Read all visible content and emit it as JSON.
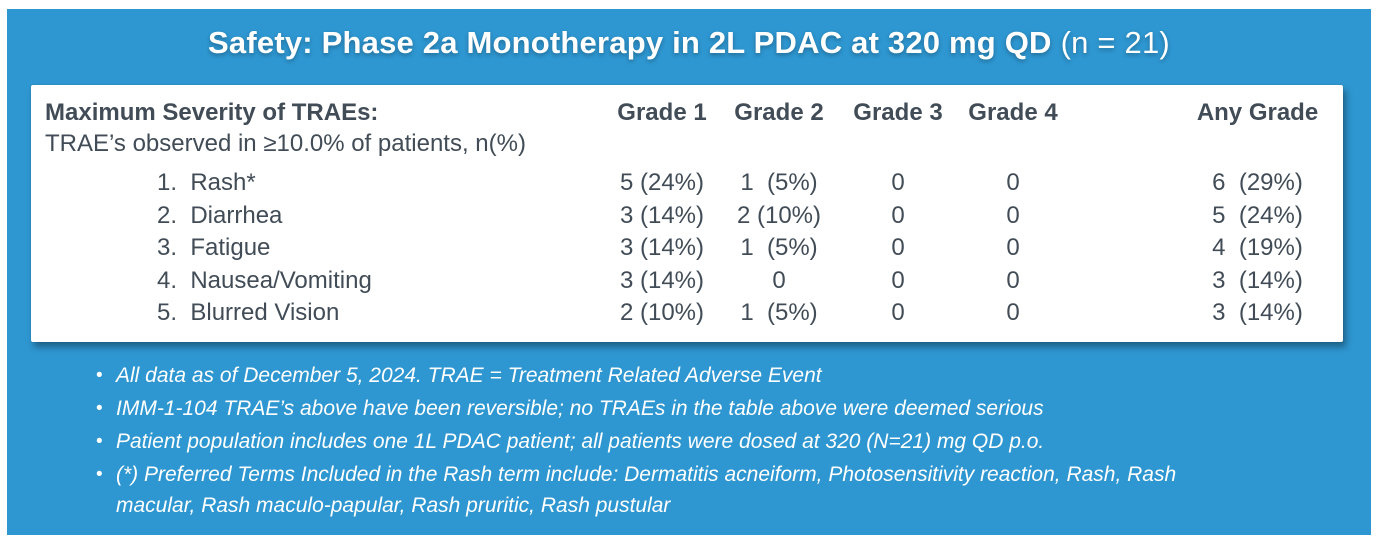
{
  "title": {
    "main": "Safety: Phase 2a Monotherapy in 2L PDAC at 320 mg QD",
    "suffix": "(n = 21)"
  },
  "table": {
    "header_line1": "Maximum Severity of TRAEs:",
    "header_line2": "TRAE’s observed in ≥10.0% of patients, n(%)",
    "columns": [
      "Grade 1",
      "Grade 2",
      "Grade 3",
      "Grade 4",
      "Any Grade"
    ],
    "rows": [
      {
        "num": "1.",
        "name": "Rash*",
        "grade1": "5 (24%)",
        "grade2": "1  (5%)",
        "grade3": "0",
        "grade4": "0",
        "any_grade": "6  (29%)"
      },
      {
        "num": "2.",
        "name": "Diarrhea",
        "grade1": "3 (14%)",
        "grade2": "2 (10%)",
        "grade3": "0",
        "grade4": "0",
        "any_grade": "5  (24%)"
      },
      {
        "num": "3.",
        "name": "Fatigue",
        "grade1": "3 (14%)",
        "grade2": "1  (5%)",
        "grade3": "0",
        "grade4": "0",
        "any_grade": "4  (19%)"
      },
      {
        "num": "4.",
        "name": "Nausea/Vomiting",
        "grade1": "3 (14%)",
        "grade2": "0",
        "grade3": "0",
        "grade4": "0",
        "any_grade": "3  (14%)"
      },
      {
        "num": "5.",
        "name": "Blurred Vision",
        "grade1": "2 (10%)",
        "grade2": "1  (5%)",
        "grade3": "0",
        "grade4": "0",
        "any_grade": "3  (14%)"
      }
    ]
  },
  "footnotes": [
    "All data as of December 5, 2024. TRAE = Treatment Related Adverse Event",
    "IMM-1-104 TRAE’s above have been reversible; no TRAEs in the table above were deemed serious",
    "Patient population includes one 1L PDAC patient; all patients were dosed at 320 (N=21) mg QD p.o.",
    "(*) Preferred Terms Included in the Rash term include: Dermatitis acneiform, Photosensitivity reaction, Rash, Rash macular, Rash maculo-papular, Rash pruritic,  Rash pustular"
  ],
  "colors": {
    "background_blue": "#2E96D0",
    "card_white": "#FFFFFF",
    "table_text": "#414C57",
    "title_text": "#FFFFFF"
  }
}
